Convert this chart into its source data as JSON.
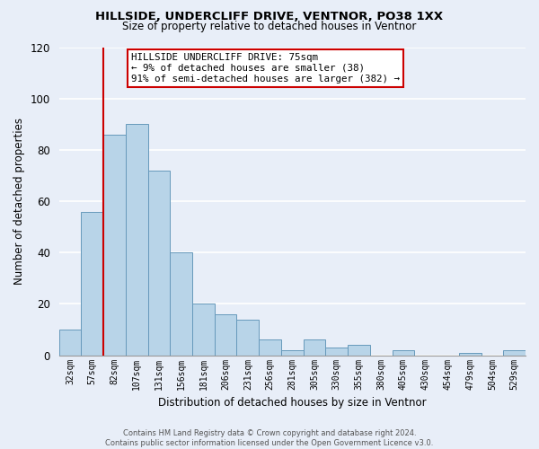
{
  "title": "HILLSIDE, UNDERCLIFF DRIVE, VENTNOR, PO38 1XX",
  "subtitle": "Size of property relative to detached houses in Ventnor",
  "xlabel": "Distribution of detached houses by size in Ventnor",
  "ylabel": "Number of detached properties",
  "bar_color": "#b8d4e8",
  "bar_edge_color": "#6699bb",
  "categories": [
    "32sqm",
    "57sqm",
    "82sqm",
    "107sqm",
    "131sqm",
    "156sqm",
    "181sqm",
    "206sqm",
    "231sqm",
    "256sqm",
    "281sqm",
    "305sqm",
    "330sqm",
    "355sqm",
    "380sqm",
    "405sqm",
    "430sqm",
    "454sqm",
    "479sqm",
    "504sqm",
    "529sqm"
  ],
  "values": [
    10,
    56,
    86,
    90,
    72,
    40,
    20,
    16,
    14,
    6,
    2,
    6,
    3,
    4,
    0,
    2,
    0,
    0,
    1,
    0,
    2
  ],
  "ylim": [
    0,
    120
  ],
  "yticks": [
    0,
    20,
    40,
    60,
    80,
    100,
    120
  ],
  "marker_color": "#cc0000",
  "annotation_title": "HILLSIDE UNDERCLIFF DRIVE: 75sqm",
  "annotation_line1": "← 9% of detached houses are smaller (38)",
  "annotation_line2": "91% of semi-detached houses are larger (382) →",
  "annotation_box_color": "#ffffff",
  "annotation_box_edge": "#cc0000",
  "footer1": "Contains HM Land Registry data © Crown copyright and database right 2024.",
  "footer2": "Contains public sector information licensed under the Open Government Licence v3.0.",
  "background_color": "#e8eef8",
  "grid_color": "#ffffff",
  "title_fontsize": 9.5,
  "subtitle_fontsize": 8.5
}
